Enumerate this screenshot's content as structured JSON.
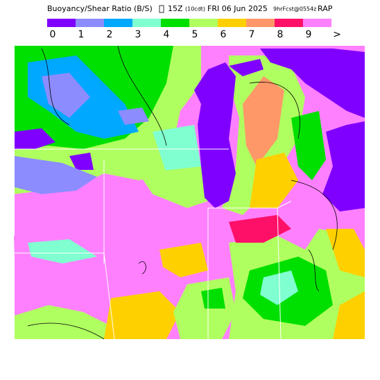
{
  "header": {
    "title_parts": [
      "Buoyancy/Shear Ratio (B/S)",
      "15Z",
      "(10cdt)",
      "FRI 06 Jun 2025",
      "9hrFcst@0554z",
      "RAP"
    ]
  },
  "legend": {
    "colors": [
      "#8000ff",
      "#8c8cff",
      "#00a8ff",
      "#80ffd0",
      "#00e000",
      "#b0ff60",
      "#ffd000",
      "#ff9868",
      "#ff1068",
      "#ff80ff"
    ],
    "labels": [
      "0",
      "1",
      "2",
      "3",
      "4",
      "5",
      "6",
      "7",
      "8",
      "9",
      ">"
    ]
  }
}
